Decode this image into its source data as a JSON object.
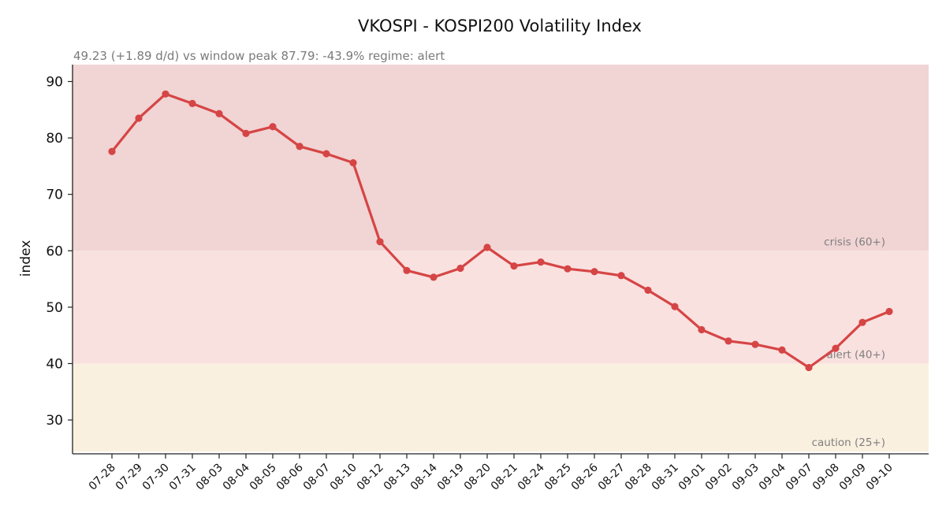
{
  "chart_data": {
    "type": "line",
    "title": "VKOSPI - KOSPI200 Volatility Index",
    "subtitle": "49.23  (+1.89 d/d)   vs window peak 87.79: -43.9%   regime: alert",
    "xlabel": "",
    "ylabel": "index",
    "ylim": [
      24,
      93
    ],
    "yticks": [
      30,
      40,
      50,
      60,
      70,
      80,
      90
    ],
    "grid": false,
    "legend": "none",
    "categories": [
      "07-28",
      "07-29",
      "07-30",
      "07-31",
      "08-03",
      "08-04",
      "08-05",
      "08-06",
      "08-07",
      "08-10",
      "08-12",
      "08-13",
      "08-14",
      "08-19",
      "08-20",
      "08-21",
      "08-24",
      "08-25",
      "08-26",
      "08-27",
      "08-28",
      "08-31",
      "09-01",
      "09-02",
      "09-03",
      "09-04",
      "09-07",
      "09-08",
      "09-09",
      "09-10"
    ],
    "series": [
      {
        "color": "#d64545",
        "values": [
          77.6,
          83.5,
          87.79,
          86.1,
          84.3,
          80.8,
          82.0,
          78.5,
          77.2,
          75.6,
          61.6,
          56.5,
          55.3,
          56.9,
          60.6,
          57.3,
          58.0,
          56.8,
          56.3,
          55.6,
          53.0,
          50.1,
          46.0,
          44.0,
          43.4,
          42.4,
          39.3,
          42.7,
          47.3,
          49.23
        ]
      }
    ],
    "bands": [
      {
        "from": 60,
        "to": 93,
        "label": "crisis (60+)",
        "color": "#f1d4d4"
      },
      {
        "from": 40,
        "to": 60,
        "label": "alert (40+)",
        "color": "#f9e1e0"
      },
      {
        "from": 24.4,
        "to": 40,
        "label": "caution (25+)",
        "color": "#faf0e0"
      }
    ]
  }
}
